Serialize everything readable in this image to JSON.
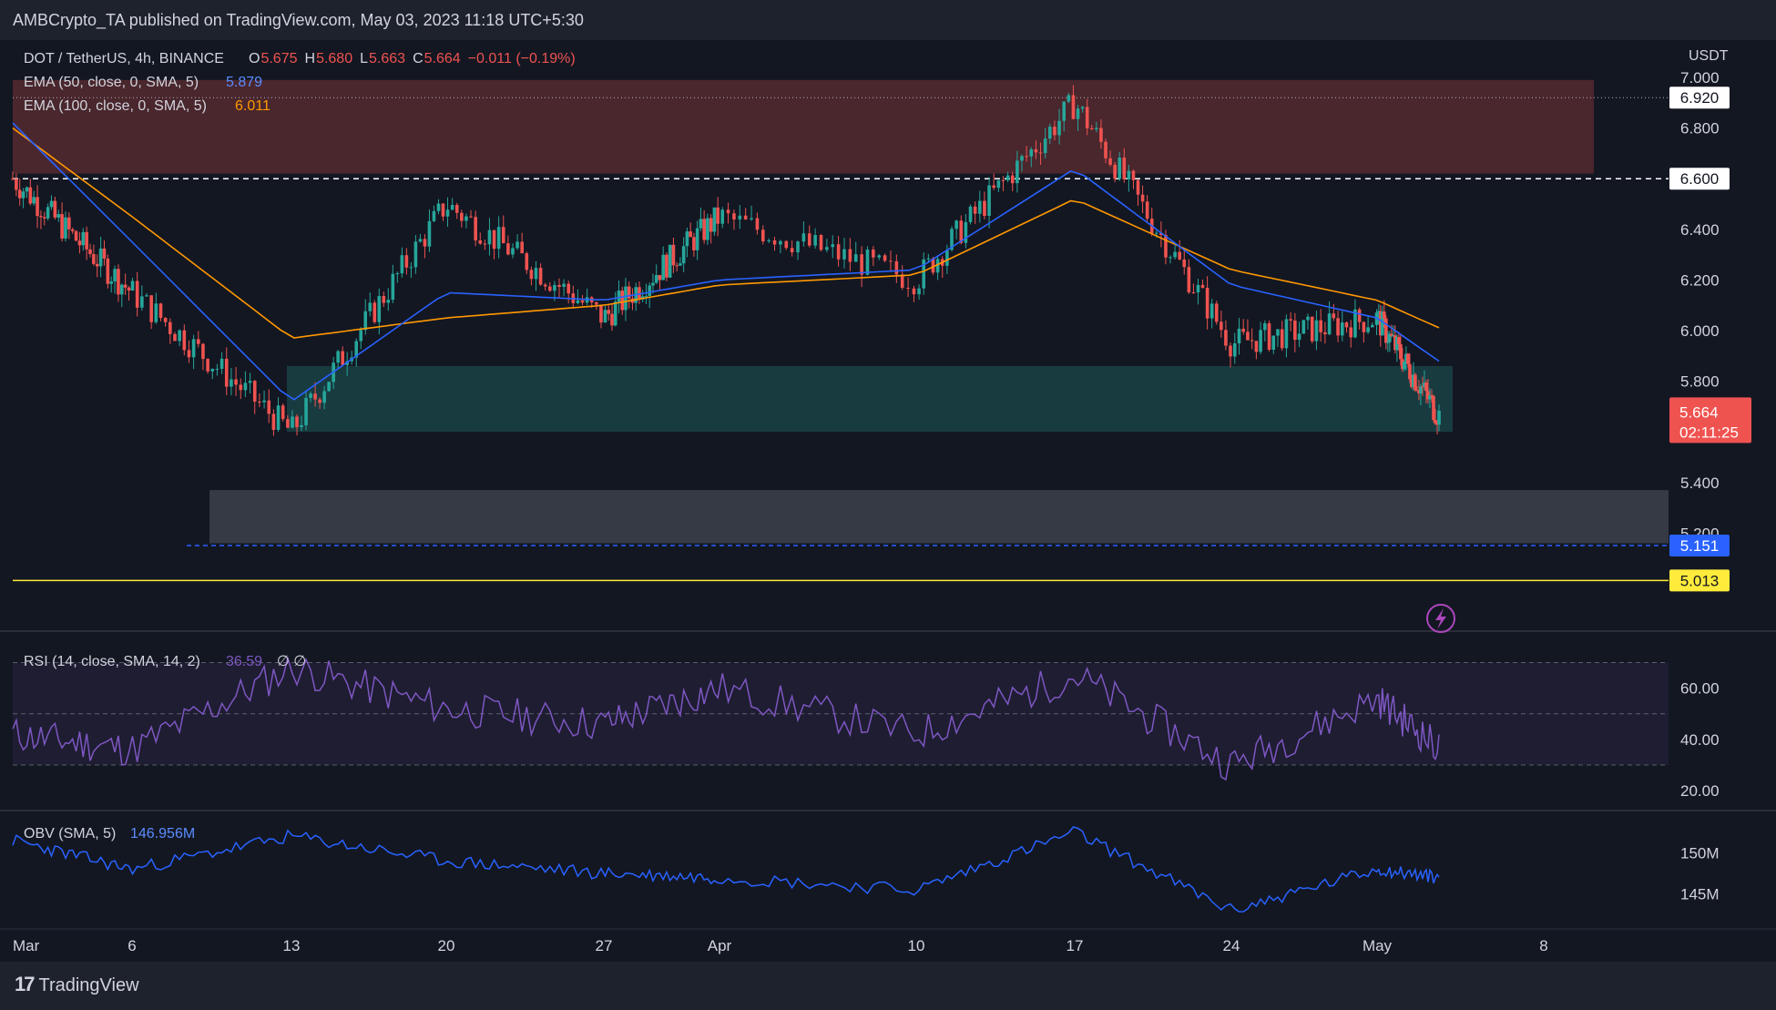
{
  "header": {
    "published": "AMBCrypto_TA published on TradingView.com, May 03, 2023 11:18 UTC+5:30"
  },
  "footer": {
    "brand": "TradingView",
    "brand_icon": "tradingview-logo-icon"
  },
  "legend": {
    "symbol": "DOT / TetherUS, 4h, BINANCE",
    "o_label": "O",
    "o": "5.675",
    "h_label": "H",
    "h": "5.680",
    "l_label": "L",
    "l": "5.663",
    "c_label": "C",
    "c": "5.664",
    "change": "−0.011 (−0.19%)",
    "ema50": "EMA (50, close, 0, SMA, 5)",
    "ema50_val": "5.879",
    "ema100": "EMA (100, close, 0, SMA, 5)",
    "ema100_val": "6.011"
  },
  "colors": {
    "up": "#26a69a",
    "down": "#ef5350",
    "ema50": "#2962ff",
    "ema100": "#ff9800",
    "rsi": "#7e57c2",
    "obv": "#2962ff",
    "bg": "#131722"
  },
  "price_axis": {
    "unit": "USDT",
    "ticks": [
      "7.000",
      "6.800",
      "6.400",
      "6.200",
      "6.000",
      "5.800",
      "5.400",
      "5.200"
    ],
    "tick_values": [
      7.0,
      6.8,
      6.4,
      6.2,
      6.0,
      5.8,
      5.4,
      5.2
    ]
  },
  "price_labels": [
    {
      "text": "6.920",
      "value": 6.92,
      "bg": "#ffffff",
      "fg": "#131722"
    },
    {
      "text": "6.600",
      "value": 6.6,
      "bg": "#ffffff",
      "fg": "#131722"
    },
    {
      "text": "5.151",
      "value": 5.151,
      "bg": "#2962ff",
      "fg": "#ffffff"
    },
    {
      "text": "5.013",
      "value": 5.013,
      "bg": "#ffeb3b",
      "fg": "#131722"
    }
  ],
  "current": {
    "price": "5.664",
    "countdown": "02:11:25",
    "value": 5.664
  },
  "x_axis": {
    "labels": [
      "Mar",
      "6",
      "13",
      "20",
      "27",
      "Apr",
      "10",
      "17",
      "24",
      "May",
      "8"
    ]
  },
  "chart_data": [
    {
      "type": "candlestick",
      "title": "DOT / TetherUS, 4h, BINANCE",
      "ylim": [
        5.0,
        7.0
      ],
      "x": [
        "Mar 1",
        "Mar 6",
        "Mar 13",
        "Mar 20",
        "Mar 27",
        "Apr 3",
        "Apr 10",
        "Apr 17",
        "Apr 24",
        "May 1",
        "May 3"
      ],
      "close": [
        6.6,
        6.15,
        5.6,
        6.5,
        6.05,
        6.45,
        6.2,
        6.9,
        5.95,
        6.05,
        5.664
      ],
      "ema50": [
        6.82,
        6.35,
        5.72,
        6.15,
        6.12,
        6.2,
        6.24,
        6.64,
        6.18,
        6.05,
        5.879
      ],
      "ema100": [
        6.8,
        6.45,
        5.97,
        6.05,
        6.1,
        6.18,
        6.22,
        6.52,
        6.24,
        6.12,
        6.011
      ],
      "zones": [
        {
          "name": "resistance",
          "from": 6.62,
          "to": 6.99,
          "color": "#ef5350"
        },
        {
          "name": "support",
          "from": 5.6,
          "to": 5.86,
          "color": "#26a69a"
        },
        {
          "name": "demand",
          "from": 5.16,
          "to": 5.37,
          "color": "#787b86"
        }
      ],
      "levels": [
        6.92,
        6.6,
        5.151,
        5.013
      ]
    },
    {
      "type": "line",
      "title": "RSI (14, close, SMA, 14, 2)",
      "label": "RSI (14, close, SMA, 14, 2)",
      "value": "36.59",
      "extra": "∅ ∅",
      "ticks": [
        "60.00",
        "40.00",
        "20.00"
      ],
      "tick_values": [
        60,
        40,
        20
      ],
      "bands": [
        70,
        50,
        30
      ],
      "ylim": [
        14,
        78
      ],
      "x": [
        "Mar 1",
        "Mar 6",
        "Mar 13",
        "Mar 20",
        "Mar 27",
        "Apr 3",
        "Apr 10",
        "Apr 17",
        "Apr 24",
        "May 1",
        "May 3"
      ],
      "values": [
        42,
        36,
        68,
        52,
        46,
        60,
        42,
        65,
        30,
        56,
        36.59
      ]
    },
    {
      "type": "line",
      "title": "OBV (SMA, 5)",
      "label": "OBV (SMA, 5)",
      "value": "146.956M",
      "ticks": [
        "150M",
        "145M"
      ],
      "tick_values": [
        150,
        145
      ],
      "ylim": [
        141,
        154
      ],
      "x": [
        "Mar 1",
        "Mar 6",
        "Mar 13",
        "Mar 20",
        "Mar 27",
        "Apr 3",
        "Apr 10",
        "Apr 17",
        "Apr 24",
        "May 1",
        "May 3"
      ],
      "values": [
        151.5,
        148,
        152,
        149,
        147.5,
        147,
        145.5,
        152.5,
        143,
        148,
        147
      ]
    }
  ]
}
